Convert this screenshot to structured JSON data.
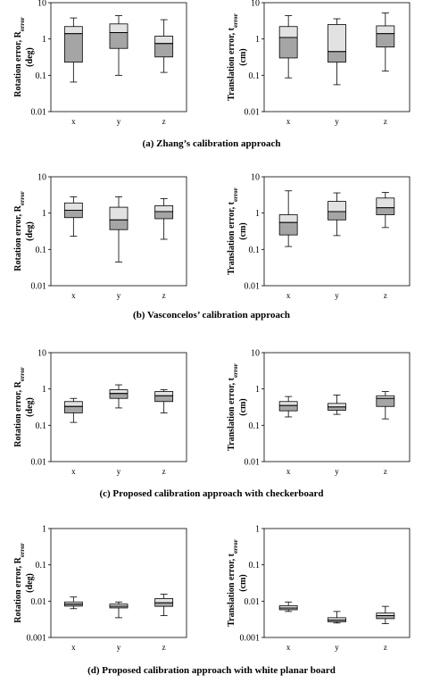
{
  "chart_data": [
    {
      "type": "box",
      "panel": "a",
      "side": "left",
      "ylabel_main": "Rotation error, R",
      "ylabel_sub": "error",
      "ylabel_unit": "(deg)",
      "yscale": "log",
      "ylim": [
        0.01,
        10
      ],
      "yticks": [
        "10",
        "1",
        "0.1",
        "0.01"
      ],
      "categories": [
        "x",
        "y",
        "z"
      ],
      "boxes": [
        {
          "min": 0.065,
          "q1": 0.23,
          "median": 1.4,
          "q3": 2.2,
          "max": 3.8
        },
        {
          "min": 0.1,
          "q1": 0.55,
          "median": 1.5,
          "q3": 2.6,
          "max": 4.4
        },
        {
          "min": 0.12,
          "q1": 0.32,
          "median": 0.75,
          "q3": 1.2,
          "max": 3.4
        }
      ]
    },
    {
      "type": "box",
      "panel": "a",
      "side": "right",
      "ylabel_main": "Translation error, t",
      "ylabel_sub": "error",
      "ylabel_unit": "(cm)",
      "yscale": "log",
      "ylim": [
        0.01,
        10
      ],
      "yticks": [
        "10",
        "1",
        "0.1",
        "0.01"
      ],
      "categories": [
        "x",
        "y",
        "z"
      ],
      "boxes": [
        {
          "min": 0.085,
          "q1": 0.3,
          "median": 1.1,
          "q3": 2.2,
          "max": 4.4
        },
        {
          "min": 0.055,
          "q1": 0.23,
          "median": 0.45,
          "q3": 2.5,
          "max": 3.6
        },
        {
          "min": 0.13,
          "q1": 0.6,
          "median": 1.4,
          "q3": 2.3,
          "max": 5.2
        }
      ]
    },
    {
      "type": "box",
      "panel": "b",
      "side": "left",
      "ylabel_main": "Rotation error, R",
      "ylabel_sub": "error",
      "ylabel_unit": "(deg)",
      "yscale": "log",
      "ylim": [
        0.01,
        10
      ],
      "yticks": [
        "10",
        "1",
        "0.1",
        "0.01"
      ],
      "categories": [
        "x",
        "y",
        "z"
      ],
      "boxes": [
        {
          "min": 0.23,
          "q1": 0.75,
          "median": 1.2,
          "q3": 1.9,
          "max": 2.8
        },
        {
          "min": 0.045,
          "q1": 0.35,
          "median": 0.65,
          "q3": 1.45,
          "max": 2.8
        },
        {
          "min": 0.19,
          "q1": 0.7,
          "median": 1.1,
          "q3": 1.6,
          "max": 2.5
        }
      ]
    },
    {
      "type": "box",
      "panel": "b",
      "side": "right",
      "ylabel_main": "Translation error, t",
      "ylabel_sub": "error",
      "ylabel_unit": "(cm)",
      "yscale": "log",
      "ylim": [
        0.01,
        10
      ],
      "yticks": [
        "10",
        "1",
        "0.1",
        "0.01"
      ],
      "categories": [
        "x",
        "y",
        "z"
      ],
      "boxes": [
        {
          "min": 0.12,
          "q1": 0.25,
          "median": 0.55,
          "q3": 0.9,
          "max": 4.1
        },
        {
          "min": 0.24,
          "q1": 0.65,
          "median": 1.1,
          "q3": 2.1,
          "max": 3.6
        },
        {
          "min": 0.4,
          "q1": 0.9,
          "median": 1.4,
          "q3": 2.6,
          "max": 3.7
        }
      ]
    },
    {
      "type": "box",
      "panel": "c",
      "side": "left",
      "ylabel_main": "Rotation error, R",
      "ylabel_sub": "error",
      "ylabel_unit": "(deg)",
      "yscale": "log",
      "ylim": [
        0.01,
        10
      ],
      "yticks": [
        "10",
        "1",
        "0.1",
        "0.01"
      ],
      "categories": [
        "x",
        "y",
        "z"
      ],
      "boxes": [
        {
          "min": 0.12,
          "q1": 0.22,
          "median": 0.33,
          "q3": 0.45,
          "max": 0.55
        },
        {
          "min": 0.3,
          "q1": 0.55,
          "median": 0.75,
          "q3": 0.95,
          "max": 1.3
        },
        {
          "min": 0.22,
          "q1": 0.45,
          "median": 0.65,
          "q3": 0.85,
          "max": 0.95
        }
      ]
    },
    {
      "type": "box",
      "panel": "c",
      "side": "right",
      "ylabel_main": "Translation error, t",
      "ylabel_sub": "error",
      "ylabel_unit": "(cm)",
      "yscale": "log",
      "ylim": [
        0.01,
        10
      ],
      "yticks": [
        "10",
        "1",
        "0.1",
        "0.01"
      ],
      "categories": [
        "x",
        "y",
        "z"
      ],
      "boxes": [
        {
          "min": 0.17,
          "q1": 0.25,
          "median": 0.35,
          "q3": 0.45,
          "max": 0.62
        },
        {
          "min": 0.2,
          "q1": 0.26,
          "median": 0.32,
          "q3": 0.4,
          "max": 0.68
        },
        {
          "min": 0.15,
          "q1": 0.33,
          "median": 0.55,
          "q3": 0.65,
          "max": 0.85
        }
      ]
    },
    {
      "type": "box",
      "panel": "d",
      "side": "left",
      "ylabel_main": "Rotation error, R",
      "ylabel_sub": "error",
      "ylabel_unit": "(deg)",
      "yscale": "log",
      "ylim": [
        0.001,
        1
      ],
      "yticks": [
        "1",
        "0.1",
        "0.01",
        "0.001"
      ],
      "categories": [
        "x",
        "y",
        "z"
      ],
      "boxes": [
        {
          "min": 0.0062,
          "q1": 0.0073,
          "median": 0.0083,
          "q3": 0.0095,
          "max": 0.013
        },
        {
          "min": 0.0035,
          "q1": 0.0065,
          "median": 0.0073,
          "q3": 0.0083,
          "max": 0.0095
        },
        {
          "min": 0.004,
          "q1": 0.0072,
          "median": 0.009,
          "q3": 0.0118,
          "max": 0.0155
        }
      ]
    },
    {
      "type": "box",
      "panel": "d",
      "side": "right",
      "ylabel_main": "Translation error, t",
      "ylabel_sub": "error",
      "ylabel_unit": "(cm)",
      "yscale": "log",
      "ylim": [
        0.001,
        1
      ],
      "yticks": [
        "1",
        "0.1",
        "0.01",
        "0.001"
      ],
      "categories": [
        "x",
        "y",
        "z"
      ],
      "boxes": [
        {
          "min": 0.0052,
          "q1": 0.0058,
          "median": 0.0065,
          "q3": 0.0075,
          "max": 0.0095
        },
        {
          "min": 0.0025,
          "q1": 0.0027,
          "median": 0.003,
          "q3": 0.0035,
          "max": 0.0052
        },
        {
          "min": 0.0024,
          "q1": 0.0033,
          "median": 0.004,
          "q3": 0.0047,
          "max": 0.0072
        }
      ]
    }
  ],
  "captions": {
    "a": "(a)  Zhang’s calibration approach",
    "b": "(b) Vasconcelos’ calibration approach",
    "c": "(c) Proposed calibration approach with checkerboard",
    "d": "(d) Proposed calibration approach with white planar board"
  },
  "colors": {
    "box_dark": "#a5a5a5",
    "box_light": "#e2e2e2",
    "stroke": "#000000"
  }
}
